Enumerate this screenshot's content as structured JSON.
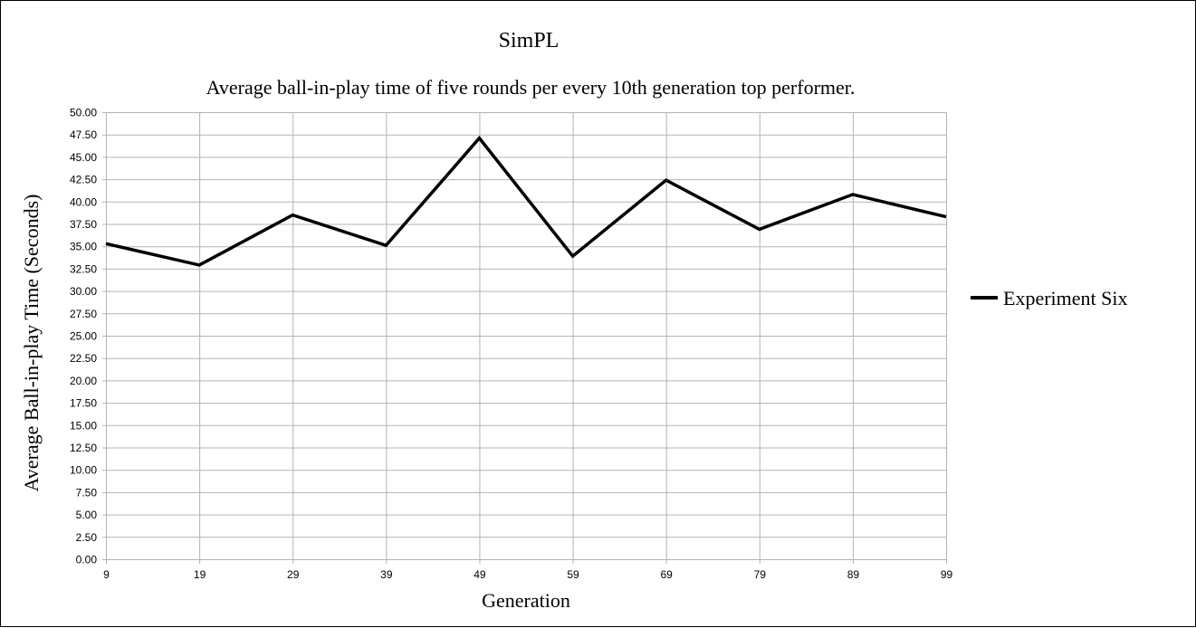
{
  "chart_data": {
    "type": "line",
    "title": "SimPL",
    "subtitle": "Average ball-in-play time of five rounds per every 10th generation top performer.",
    "xlabel": "Generation",
    "ylabel": "Average Ball-in-play Time (Seconds)",
    "categories": [
      "9",
      "19",
      "29",
      "39",
      "49",
      "59",
      "69",
      "79",
      "89",
      "99"
    ],
    "ylim": [
      0,
      50
    ],
    "ystep": 2.5,
    "grid": true,
    "legend_position": "right",
    "series": [
      {
        "name": "Experiment Six",
        "color": "#000000",
        "values": [
          35.3,
          32.9,
          38.5,
          35.1,
          47.1,
          33.9,
          42.4,
          36.9,
          40.8,
          38.3
        ]
      }
    ]
  }
}
